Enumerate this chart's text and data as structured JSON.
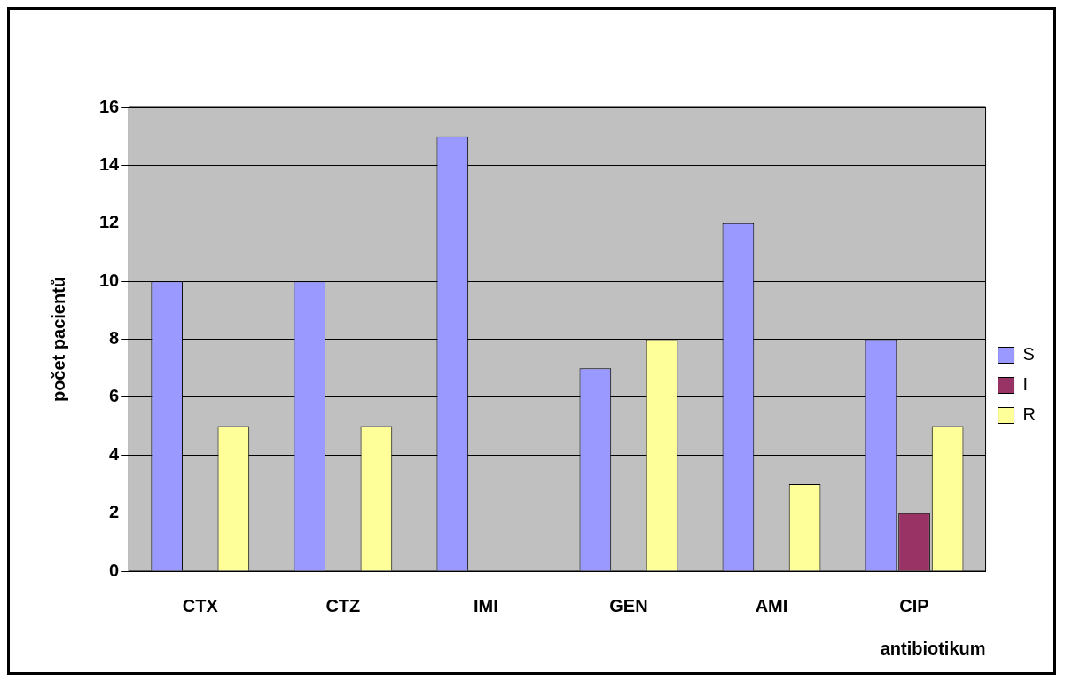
{
  "chart_data": {
    "type": "bar",
    "xlabel": "antibiotikum",
    "ylabel": "počet pacientů",
    "categories": [
      "CTX",
      "CTZ",
      "IMI",
      "GEN",
      "AMI",
      "CIP"
    ],
    "series": [
      {
        "name": "S",
        "color": "#9999ff",
        "values": [
          10,
          10,
          15,
          7,
          12,
          8
        ]
      },
      {
        "name": "I",
        "color": "#993366",
        "values": [
          0,
          0,
          0,
          0,
          0,
          2
        ]
      },
      {
        "name": "R",
        "color": "#ffff99",
        "values": [
          5,
          5,
          0,
          8,
          3,
          5
        ]
      }
    ],
    "ylim": [
      0,
      16
    ],
    "yticks": [
      0,
      2,
      4,
      6,
      8,
      10,
      12,
      14,
      16
    ],
    "grid": "y",
    "legend": "right"
  }
}
